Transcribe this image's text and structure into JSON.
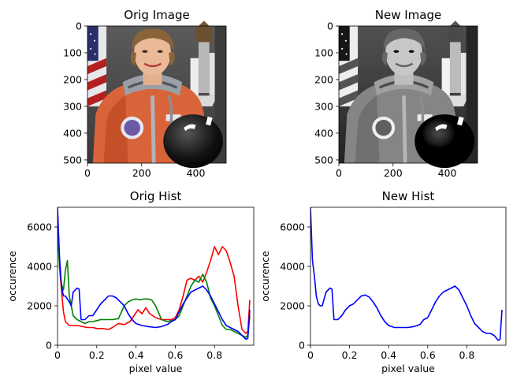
{
  "chart_data": [
    {
      "type": "image",
      "title": "Orig Image",
      "xlim": [
        0,
        512
      ],
      "ylim": [
        512,
        0
      ],
      "xticks": [
        0,
        200,
        400
      ],
      "yticks": [
        0,
        100,
        200,
        300,
        400,
        500
      ],
      "colormap": "color"
    },
    {
      "type": "image",
      "title": "New Image",
      "xlim": [
        0,
        512
      ],
      "ylim": [
        512,
        0
      ],
      "xticks": [
        0,
        200,
        400
      ],
      "yticks": [
        0,
        100,
        200,
        300,
        400,
        500
      ],
      "colormap": "gray"
    },
    {
      "type": "line",
      "title": "Orig Hist",
      "xlabel": "pixel value",
      "ylabel": "occurence",
      "xlim": [
        0,
        1
      ],
      "ylim": [
        0,
        7000
      ],
      "xticks": [
        0.0,
        0.2,
        0.4,
        0.6,
        0.8
      ],
      "yticks": [
        0,
        2000,
        4000,
        6000
      ],
      "series": [
        {
          "color": "#ff0000",
          "x": [
            0,
            0.01,
            0.02,
            0.03,
            0.04,
            0.06,
            0.08,
            0.1,
            0.13,
            0.15,
            0.18,
            0.2,
            0.23,
            0.26,
            0.28,
            0.31,
            0.34,
            0.37,
            0.39,
            0.41,
            0.43,
            0.45,
            0.47,
            0.5,
            0.53,
            0.56,
            0.58,
            0.6,
            0.62,
            0.64,
            0.66,
            0.68,
            0.7,
            0.72,
            0.74,
            0.76,
            0.78,
            0.8,
            0.82,
            0.84,
            0.86,
            0.88,
            0.9,
            0.92,
            0.94,
            0.96,
            0.97,
            0.98
          ],
          "y": [
            6900,
            4000,
            2800,
            1700,
            1200,
            1000,
            1000,
            1000,
            950,
            900,
            900,
            850,
            850,
            800,
            900,
            1100,
            1050,
            1200,
            1500,
            1800,
            1600,
            1900,
            1600,
            1400,
            1300,
            1300,
            1300,
            1400,
            1800,
            2500,
            3300,
            3400,
            3300,
            3500,
            3200,
            3700,
            4300,
            5000,
            4600,
            5000,
            4800,
            4200,
            3500,
            2000,
            800,
            600,
            700,
            2300
          ]
        },
        {
          "color": "#008000",
          "x": [
            0,
            0.01,
            0.02,
            0.03,
            0.04,
            0.05,
            0.06,
            0.08,
            0.1,
            0.12,
            0.14,
            0.16,
            0.18,
            0.2,
            0.22,
            0.25,
            0.28,
            0.31,
            0.34,
            0.36,
            0.38,
            0.4,
            0.42,
            0.44,
            0.46,
            0.48,
            0.5,
            0.53,
            0.56,
            0.58,
            0.6,
            0.62,
            0.64,
            0.66,
            0.68,
            0.7,
            0.72,
            0.74,
            0.76,
            0.78,
            0.8,
            0.82,
            0.84,
            0.86,
            0.88,
            0.9,
            0.92,
            0.94,
            0.96,
            0.97,
            0.98
          ],
          "y": [
            5800,
            4000,
            3100,
            2800,
            3800,
            4300,
            2500,
            1500,
            1300,
            1200,
            1100,
            1200,
            1200,
            1250,
            1300,
            1300,
            1300,
            1350,
            2000,
            2200,
            2300,
            2350,
            2300,
            2350,
            2350,
            2300,
            2000,
            1300,
            1200,
            1250,
            1300,
            1500,
            2000,
            2500,
            3000,
            3300,
            3200,
            3600,
            3200,
            2400,
            2000,
            1500,
            1000,
            800,
            800,
            700,
            600,
            500,
            400,
            500,
            1500
          ]
        },
        {
          "color": "#0000ff",
          "x": [
            0,
            0.01,
            0.02,
            0.03,
            0.04,
            0.06,
            0.07,
            0.08,
            0.1,
            0.11,
            0.12,
            0.14,
            0.16,
            0.18,
            0.2,
            0.22,
            0.24,
            0.26,
            0.28,
            0.3,
            0.32,
            0.34,
            0.36,
            0.38,
            0.4,
            0.43,
            0.46,
            0.5,
            0.53,
            0.56,
            0.58,
            0.6,
            0.62,
            0.64,
            0.66,
            0.68,
            0.7,
            0.72,
            0.74,
            0.76,
            0.78,
            0.8,
            0.82,
            0.84,
            0.86,
            0.88,
            0.9,
            0.92,
            0.94,
            0.96,
            0.97,
            0.98
          ],
          "y": [
            7000,
            4500,
            3000,
            2500,
            2500,
            2200,
            2000,
            2700,
            2900,
            2850,
            1300,
            1300,
            1500,
            1500,
            1800,
            2100,
            2300,
            2500,
            2500,
            2400,
            2200,
            2000,
            1600,
            1300,
            1100,
            1000,
            950,
            900,
            950,
            1050,
            1200,
            1300,
            1700,
            2100,
            2400,
            2700,
            2800,
            2900,
            3000,
            2800,
            2500,
            2100,
            1700,
            1300,
            1000,
            900,
            800,
            700,
            500,
            300,
            350,
            1800
          ]
        }
      ]
    },
    {
      "type": "line",
      "title": "New Hist",
      "xlabel": "pixel value",
      "ylabel": "occurence",
      "xlim": [
        0,
        1
      ],
      "ylim": [
        0,
        7000
      ],
      "xticks": [
        0.0,
        0.2,
        0.4,
        0.6,
        0.8
      ],
      "yticks": [
        0,
        2000,
        4000,
        6000
      ],
      "series": [
        {
          "color": "#0000ff",
          "x": [
            0,
            0.01,
            0.02,
            0.03,
            0.04,
            0.05,
            0.06,
            0.08,
            0.1,
            0.11,
            0.12,
            0.14,
            0.16,
            0.18,
            0.2,
            0.22,
            0.24,
            0.26,
            0.28,
            0.3,
            0.32,
            0.34,
            0.36,
            0.38,
            0.4,
            0.43,
            0.46,
            0.5,
            0.53,
            0.56,
            0.58,
            0.6,
            0.62,
            0.64,
            0.66,
            0.68,
            0.7,
            0.72,
            0.74,
            0.76,
            0.78,
            0.8,
            0.82,
            0.84,
            0.86,
            0.88,
            0.9,
            0.92,
            0.94,
            0.96,
            0.97,
            0.98
          ],
          "y": [
            7000,
            4300,
            3500,
            2500,
            2100,
            2000,
            2000,
            2700,
            2900,
            2850,
            1300,
            1300,
            1500,
            1800,
            2000,
            2100,
            2300,
            2500,
            2550,
            2450,
            2200,
            1900,
            1500,
            1200,
            1000,
            900,
            900,
            900,
            950,
            1050,
            1300,
            1400,
            1800,
            2200,
            2500,
            2700,
            2800,
            2900,
            3000,
            2800,
            2400,
            2000,
            1500,
            1100,
            900,
            700,
            600,
            600,
            500,
            250,
            300,
            1800
          ]
        }
      ]
    }
  ]
}
